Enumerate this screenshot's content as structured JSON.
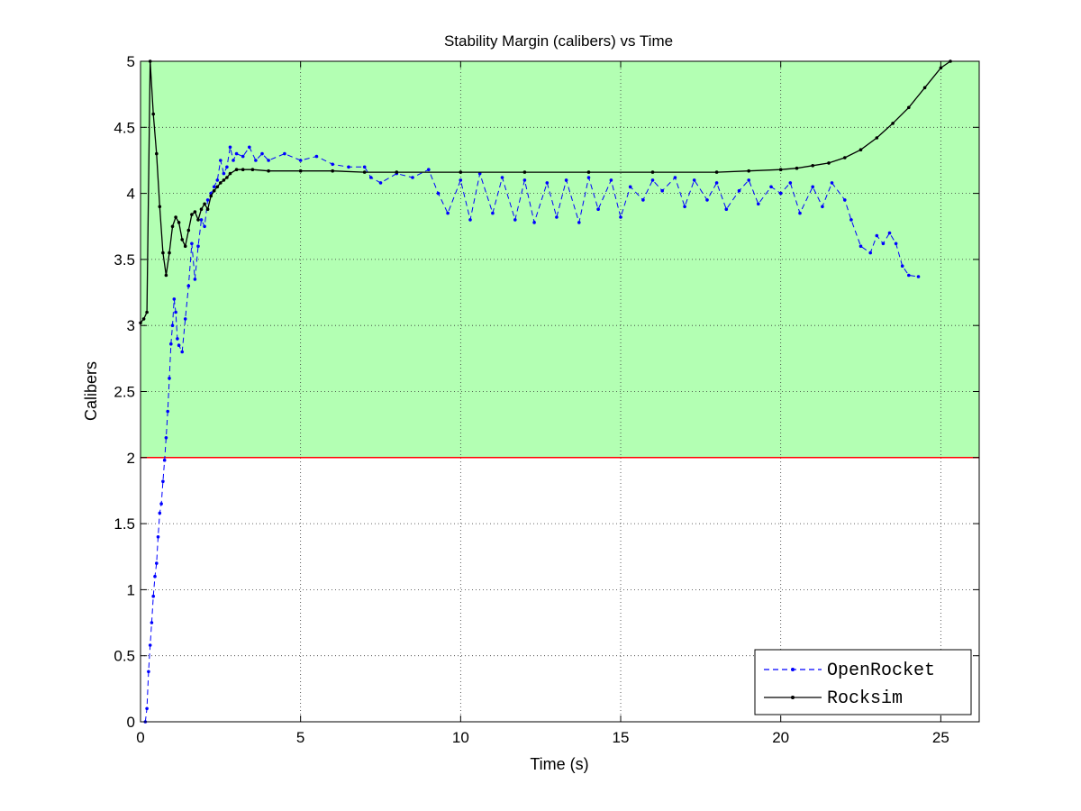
{
  "chart_data": {
    "type": "line",
    "title": "Stability Margin (calibers) vs Time",
    "xlabel": "Time (s)",
    "ylabel": "Calibers",
    "xlim": [
      0,
      26.2
    ],
    "ylim": [
      0,
      5
    ],
    "xticks": [
      0,
      5,
      10,
      15,
      20,
      25
    ],
    "yticks": [
      0,
      0.5,
      1,
      1.5,
      2,
      2.5,
      3,
      3.5,
      4,
      4.5,
      5
    ],
    "xtick_labels": [
      "0",
      "5",
      "10",
      "15",
      "20",
      "25"
    ],
    "ytick_labels": [
      "0",
      "0.5",
      "1",
      "1.5",
      "2",
      "2.5",
      "3",
      "3.5",
      "4",
      "4.5",
      "5"
    ],
    "grid": true,
    "legend_position": "bottom-right",
    "stable_region": {
      "from": 2,
      "to": 5,
      "color": "#b3ffb3"
    },
    "threshold_line": {
      "y": 2,
      "color": "#ff0000"
    },
    "series": [
      {
        "name": "OpenRocket",
        "color": "#0000ff",
        "line_style": "dashed",
        "x": [
          0.15,
          0.2,
          0.25,
          0.3,
          0.35,
          0.4,
          0.45,
          0.5,
          0.55,
          0.6,
          0.65,
          0.7,
          0.75,
          0.8,
          0.85,
          0.9,
          0.95,
          1.0,
          1.05,
          1.1,
          1.15,
          1.2,
          1.3,
          1.4,
          1.5,
          1.6,
          1.7,
          1.8,
          1.9,
          2.0,
          2.1,
          2.2,
          2.3,
          2.4,
          2.5,
          2.6,
          2.7,
          2.8,
          2.9,
          3.0,
          3.2,
          3.4,
          3.6,
          3.8,
          4.0,
          4.5,
          5.0,
          5.5,
          6.0,
          6.5,
          7.0,
          7.2,
          7.5,
          8.0,
          8.5,
          9.0,
          9.3,
          9.6,
          10.0,
          10.3,
          10.6,
          11.0,
          11.3,
          11.7,
          12.0,
          12.3,
          12.7,
          13.0,
          13.3,
          13.7,
          14.0,
          14.3,
          14.7,
          15.0,
          15.3,
          15.7,
          16.0,
          16.3,
          16.7,
          17.0,
          17.3,
          17.7,
          18.0,
          18.3,
          18.7,
          19.0,
          19.3,
          19.7,
          20.0,
          20.3,
          20.6,
          21.0,
          21.3,
          21.6,
          22.0,
          22.2,
          22.5,
          22.8,
          23.0,
          23.2,
          23.4,
          23.6,
          23.8,
          24.0,
          24.3
        ],
        "y": [
          0.0,
          0.1,
          0.38,
          0.58,
          0.75,
          0.95,
          1.1,
          1.2,
          1.4,
          1.58,
          1.65,
          1.82,
          1.98,
          2.15,
          2.35,
          2.6,
          2.86,
          3.0,
          3.2,
          3.1,
          2.9,
          2.85,
          2.8,
          3.05,
          3.3,
          3.62,
          3.35,
          3.6,
          3.8,
          3.75,
          3.95,
          4.0,
          4.05,
          4.1,
          4.25,
          4.15,
          4.2,
          4.35,
          4.25,
          4.3,
          4.28,
          4.35,
          4.25,
          4.3,
          4.25,
          4.3,
          4.25,
          4.28,
          4.22,
          4.2,
          4.2,
          4.12,
          4.08,
          4.15,
          4.12,
          4.18,
          4.0,
          3.85,
          4.1,
          3.8,
          4.15,
          3.85,
          4.12,
          3.8,
          4.1,
          3.78,
          4.08,
          3.82,
          4.1,
          3.78,
          4.12,
          3.88,
          4.1,
          3.82,
          4.05,
          3.95,
          4.1,
          4.02,
          4.12,
          3.9,
          4.1,
          3.95,
          4.08,
          3.88,
          4.02,
          4.1,
          3.92,
          4.05,
          4.0,
          4.08,
          3.85,
          4.05,
          3.9,
          4.08,
          3.95,
          3.8,
          3.6,
          3.55,
          3.68,
          3.62,
          3.7,
          3.62,
          3.45,
          3.38,
          3.37
        ]
      },
      {
        "name": "Rocksim",
        "color": "#000000",
        "line_style": "solid",
        "x": [
          0.0,
          0.1,
          0.2,
          0.3,
          0.4,
          0.5,
          0.6,
          0.7,
          0.8,
          0.9,
          1.0,
          1.1,
          1.2,
          1.3,
          1.4,
          1.5,
          1.6,
          1.7,
          1.8,
          1.9,
          2.0,
          2.1,
          2.2,
          2.3,
          2.4,
          2.5,
          2.6,
          2.7,
          2.8,
          3.0,
          3.2,
          3.5,
          4.0,
          5.0,
          6.0,
          7.0,
          8.0,
          10.0,
          12.0,
          14.0,
          16.0,
          18.0,
          19.0,
          20.0,
          20.5,
          21.0,
          21.5,
          22.0,
          22.5,
          23.0,
          23.5,
          24.0,
          24.5,
          25.0,
          25.3
        ],
        "y": [
          3.02,
          3.05,
          3.1,
          5.0,
          4.6,
          4.3,
          3.9,
          3.55,
          3.38,
          3.55,
          3.75,
          3.82,
          3.78,
          3.65,
          3.6,
          3.72,
          3.84,
          3.86,
          3.8,
          3.88,
          3.92,
          3.88,
          3.98,
          4.02,
          4.05,
          4.08,
          4.1,
          4.12,
          4.15,
          4.18,
          4.18,
          4.18,
          4.17,
          4.17,
          4.17,
          4.16,
          4.16,
          4.16,
          4.16,
          4.16,
          4.16,
          4.16,
          4.17,
          4.18,
          4.19,
          4.21,
          4.23,
          4.27,
          4.33,
          4.42,
          4.53,
          4.65,
          4.8,
          4.95,
          5.0
        ]
      }
    ]
  }
}
